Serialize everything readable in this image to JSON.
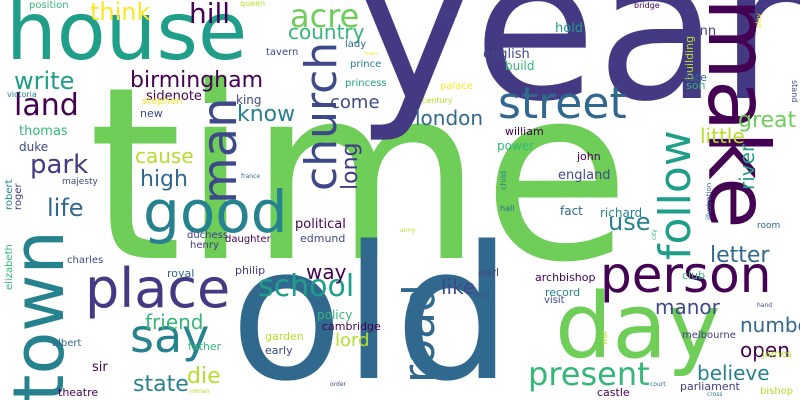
{
  "palette": {
    "dark_purple": "#440154",
    "indigo": "#443a83",
    "slate_blue": "#3e4989",
    "steel_blue": "#31688e",
    "teal_blue": "#26828e",
    "teal": "#1f9e89",
    "sea_green": "#35b779",
    "green": "#6ece58",
    "lime": "#b5de2b",
    "yellow": "#fde725"
  },
  "words": [
    {
      "id": "time",
      "text": "time",
      "color": "#6ece58"
    },
    {
      "id": "year",
      "text": "year",
      "color": "#443a83"
    },
    {
      "id": "old",
      "text": "old",
      "color": "#31688e"
    },
    {
      "id": "house",
      "text": "house",
      "color": "#1f9e89"
    },
    {
      "id": "make",
      "text": "make",
      "color": "#440154"
    },
    {
      "id": "town",
      "text": "town",
      "color": "#26828e"
    },
    {
      "id": "day",
      "text": "day",
      "color": "#6ece58"
    },
    {
      "id": "person",
      "text": "person",
      "color": "#440154"
    },
    {
      "id": "place",
      "text": "place",
      "color": "#443a83"
    },
    {
      "id": "good",
      "text": "good",
      "color": "#26828e"
    },
    {
      "id": "man",
      "text": "man",
      "color": "#3e4989"
    },
    {
      "id": "church",
      "text": "church",
      "color": "#3e4989"
    },
    {
      "id": "street",
      "text": "street",
      "color": "#31688e"
    },
    {
      "id": "road",
      "text": "road",
      "color": "#31688e"
    },
    {
      "id": "say",
      "text": "say",
      "color": "#26828e"
    },
    {
      "id": "follow",
      "text": "follow",
      "color": "#1f9e89"
    },
    {
      "id": "land",
      "text": "land",
      "color": "#440154"
    },
    {
      "id": "present",
      "text": "present",
      "color": "#35b779"
    },
    {
      "id": "school",
      "text": "school",
      "color": "#1f9e89"
    },
    {
      "id": "acre",
      "text": "acre",
      "color": "#6ece58"
    },
    {
      "id": "birmingham",
      "text": "birmingham",
      "color": "#440154"
    },
    {
      "id": "hill",
      "text": "hill",
      "color": "#440154"
    },
    {
      "id": "great",
      "text": "great",
      "color": "#6ece58"
    },
    {
      "id": "park",
      "text": "park",
      "color": "#443a83"
    },
    {
      "id": "life",
      "text": "life",
      "color": "#31688e"
    },
    {
      "id": "write",
      "text": "write",
      "color": "#1f9e89"
    },
    {
      "id": "think",
      "text": "think",
      "color": "#fde725"
    },
    {
      "id": "country",
      "text": "country",
      "color": "#35b779"
    },
    {
      "id": "know",
      "text": "know",
      "color": "#26828e"
    },
    {
      "id": "london",
      "text": "london",
      "color": "#31688e"
    },
    {
      "id": "long",
      "text": "long",
      "color": "#443a83"
    },
    {
      "id": "high",
      "text": "high",
      "color": "#31688e"
    },
    {
      "id": "cause",
      "text": "cause",
      "color": "#b5de2b"
    },
    {
      "id": "use",
      "text": "use",
      "color": "#26828e"
    },
    {
      "id": "letter",
      "text": "letter",
      "color": "#31688e"
    },
    {
      "id": "manor",
      "text": "manor",
      "color": "#3e4989"
    },
    {
      "id": "river",
      "text": "river",
      "color": "#1f9e89"
    },
    {
      "id": "little",
      "text": "little",
      "color": "#b5de2b"
    },
    {
      "id": "number",
      "text": "number",
      "color": "#31688e"
    },
    {
      "id": "open",
      "text": "open",
      "color": "#440154"
    },
    {
      "id": "believe",
      "text": "believe",
      "color": "#26828e"
    },
    {
      "id": "state",
      "text": "state",
      "color": "#26828e"
    },
    {
      "id": "die",
      "text": "die",
      "color": "#b5de2b"
    },
    {
      "id": "friend",
      "text": "friend",
      "color": "#35b779"
    },
    {
      "id": "way",
      "text": "way",
      "color": "#440154"
    },
    {
      "id": "like",
      "text": "like",
      "color": "#3e4989"
    },
    {
      "id": "lord",
      "text": "lord",
      "color": "#b5de2b"
    },
    {
      "id": "come",
      "text": "come",
      "color": "#3e4989"
    },
    {
      "id": "sidenote",
      "text": "sidenote",
      "color": "#440154"
    },
    {
      "id": "king",
      "text": "king",
      "color": "#3e4989"
    },
    {
      "id": "thomas",
      "text": "thomas",
      "color": "#35b779"
    },
    {
      "id": "duke",
      "text": "duke",
      "color": "#3e4989"
    },
    {
      "id": "english",
      "text": "english",
      "color": "#3e4989"
    },
    {
      "id": "build",
      "text": "build",
      "color": "#35b779"
    },
    {
      "id": "hold",
      "text": "hold",
      "color": "#1f9e89"
    },
    {
      "id": "inn",
      "text": "inn",
      "color": "#443a83"
    },
    {
      "id": "building",
      "text": "building",
      "color": "#b5de2b"
    },
    {
      "id": "late",
      "text": "late",
      "color": "#31688e"
    },
    {
      "id": "son",
      "text": "son",
      "color": "#35b779"
    },
    {
      "id": "political",
      "text": "political",
      "color": "#440154"
    },
    {
      "id": "edmund",
      "text": "edmund",
      "color": "#3e4989"
    },
    {
      "id": "england",
      "text": "england",
      "color": "#3e4989"
    },
    {
      "id": "richard",
      "text": "richard",
      "color": "#26828e"
    },
    {
      "id": "fact",
      "text": "fact",
      "color": "#31688e"
    },
    {
      "id": "power",
      "text": "power",
      "color": "#35b779"
    },
    {
      "id": "william",
      "text": "william",
      "color": "#440154"
    },
    {
      "id": "john",
      "text": "john",
      "color": "#440154"
    },
    {
      "id": "club",
      "text": "club",
      "color": "#35b779"
    },
    {
      "id": "archbishop",
      "text": "archbishop",
      "color": "#440154"
    },
    {
      "id": "record",
      "text": "record",
      "color": "#26828e"
    },
    {
      "id": "visit",
      "text": "visit",
      "color": "#3e4989"
    },
    {
      "id": "earl",
      "text": "earl",
      "color": "#3e4989"
    },
    {
      "id": "policy",
      "text": "policy",
      "color": "#35b779"
    },
    {
      "id": "cambridge",
      "text": "cambridge",
      "color": "#440154"
    },
    {
      "id": "garden",
      "text": "garden",
      "color": "#b5de2b"
    },
    {
      "id": "early",
      "text": "early",
      "color": "#3e4989"
    },
    {
      "id": "father",
      "text": "father",
      "color": "#35b779"
    },
    {
      "id": "sir",
      "text": "sir",
      "color": "#440154"
    },
    {
      "id": "albert",
      "text": "albert",
      "color": "#31688e"
    },
    {
      "id": "theatre",
      "text": "theatre",
      "color": "#440154"
    },
    {
      "id": "castle",
      "text": "castle",
      "color": "#440154"
    },
    {
      "id": "parliament",
      "text": "parliament",
      "color": "#443a83"
    },
    {
      "id": "melbourne",
      "text": "melbourne",
      "color": "#443a83"
    },
    {
      "id": "james",
      "text": "james",
      "color": "#b5de2b"
    },
    {
      "id": "bishop",
      "text": "bishop",
      "color": "#b5de2b"
    },
    {
      "id": "royal",
      "text": "royal",
      "color": "#31688e"
    },
    {
      "id": "philip",
      "text": "philip",
      "color": "#443a83"
    },
    {
      "id": "charles",
      "text": "charles",
      "color": "#3e4989"
    },
    {
      "id": "duchess",
      "text": "duchess",
      "color": "#443a83"
    },
    {
      "id": "henry",
      "text": "henry",
      "color": "#443a83"
    },
    {
      "id": "daughter",
      "text": "daughter",
      "color": "#440154"
    },
    {
      "id": "robert",
      "text": "robert",
      "color": "#26828e"
    },
    {
      "id": "roger",
      "text": "roger",
      "color": "#443a83"
    },
    {
      "id": "elizabeth",
      "text": "elizabeth",
      "color": "#35b779"
    },
    {
      "id": "majesty",
      "text": "majesty",
      "color": "#3e4989"
    },
    {
      "id": "new",
      "text": "new",
      "color": "#3e4989"
    },
    {
      "id": "stephen",
      "text": "stephen",
      "color": "#fde725"
    },
    {
      "id": "princess",
      "text": "princess",
      "color": "#1f9e89"
    },
    {
      "id": "prince",
      "text": "prince",
      "color": "#26828e"
    },
    {
      "id": "lady",
      "text": "lady",
      "color": "#31688e"
    },
    {
      "id": "tavern",
      "text": "tavern",
      "color": "#3e4989"
    },
    {
      "id": "position",
      "text": "position",
      "color": "#35b779"
    },
    {
      "id": "queen",
      "text": "queen",
      "color": "#b5de2b"
    },
    {
      "id": "victoria",
      "text": "victoria",
      "color": "#26828e"
    },
    {
      "id": "palace",
      "text": "palace",
      "color": "#fde725"
    },
    {
      "id": "century",
      "text": "century",
      "color": "#b5de2b"
    },
    {
      "id": "mile",
      "text": "mile",
      "color": "#3e4989"
    },
    {
      "id": "bridge",
      "text": "bridge",
      "color": "#440154"
    },
    {
      "id": "stand",
      "text": "stand",
      "color": "#3e4989"
    },
    {
      "id": "room",
      "text": "room",
      "color": "#31688e"
    },
    {
      "id": "child",
      "text": "child",
      "color": "#26828e"
    },
    {
      "id": "hall",
      "text": "hall",
      "color": "#31688e"
    },
    {
      "id": "war",
      "text": "war",
      "color": "#b5de2b"
    },
    {
      "id": "force",
      "text": "force",
      "color": "#3e4989"
    },
    {
      "id": "hand",
      "text": "hand",
      "color": "#3e4989"
    },
    {
      "id": "roman",
      "text": "roman",
      "color": "#b5de2b"
    },
    {
      "id": "order",
      "text": "order",
      "color": "#3e4989"
    },
    {
      "id": "court",
      "text": "court",
      "color": "#31688e"
    },
    {
      "id": "cross",
      "text": "cross",
      "color": "#26828e"
    },
    {
      "id": "france",
      "text": "france",
      "color": "#31688e"
    },
    {
      "id": "army",
      "text": "army",
      "color": "#b5de2b"
    },
    {
      "id": "city",
      "text": "city",
      "color": "#35b779"
    },
    {
      "id": "illustration",
      "text": "illustration",
      "color": "#31688e"
    },
    {
      "id": "play",
      "text": "play",
      "color": "#fde725"
    },
    {
      "id": "town2",
      "text": "town",
      "color": "#fde725"
    }
  ]
}
